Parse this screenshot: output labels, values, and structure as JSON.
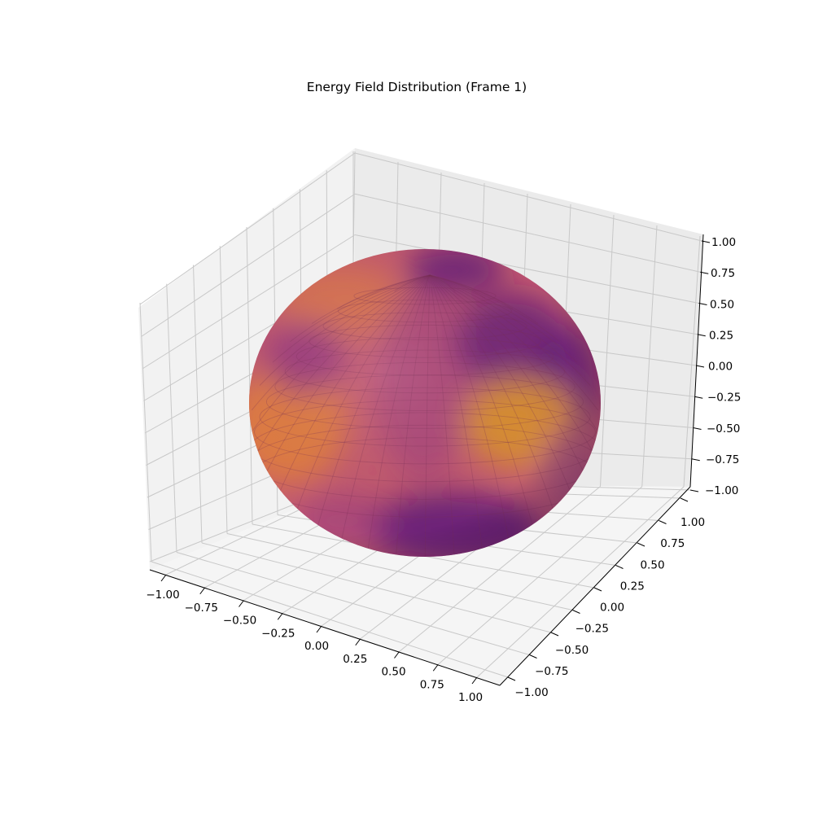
{
  "chart_data": {
    "type": "surface3d",
    "title": "Energy Field Distribution (Frame 1)",
    "xlabel": "",
    "ylabel": "",
    "zlabel": "",
    "xlim": [
      -1.0,
      1.0
    ],
    "ylim": [
      -1.0,
      1.0
    ],
    "zlim": [
      -1.0,
      1.0
    ],
    "x_ticks": [
      "−1.00",
      "−0.75",
      "−0.50",
      "−0.25",
      "0.00",
      "0.25",
      "0.50",
      "0.75",
      "1.00"
    ],
    "y_ticks": [
      "−1.00",
      "−0.75",
      "−0.50",
      "−0.25",
      "0.00",
      "0.25",
      "0.50",
      "0.75",
      "1.00"
    ],
    "z_ticks": [
      "−1.00",
      "−0.75",
      "−0.50",
      "−0.25",
      "0.00",
      "0.25",
      "0.50",
      "0.75",
      "1.00"
    ],
    "surface": {
      "shape": "sphere",
      "radius": 1.0,
      "colormap": "plasma",
      "color_range": [
        "#440154",
        "#ffd24a"
      ],
      "colors": {
        "base": "#c45a6e",
        "dark": "#5e1b79",
        "mid": "#9b3b80",
        "warm": "#e2803f",
        "bright": "#d9922c",
        "edge": "#a0507a"
      }
    },
    "grid": true,
    "pane_colors": [
      "#f2f2f2",
      "#ebebeb",
      "#f7f7f7"
    ]
  }
}
